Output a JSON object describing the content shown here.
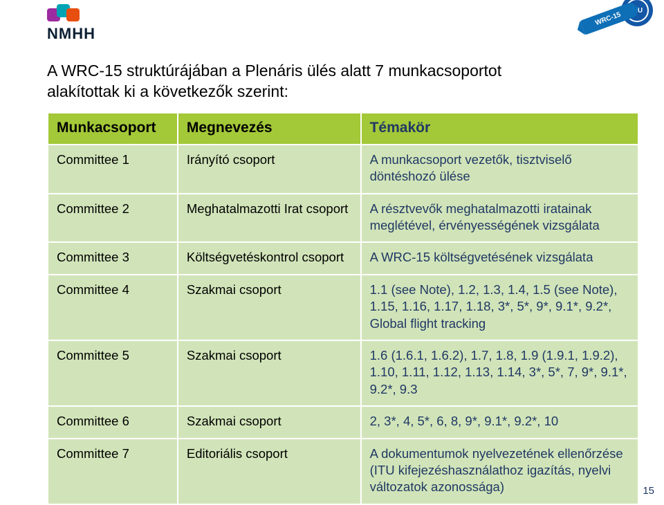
{
  "colors": {
    "header_row_bg": "#a3c838",
    "header_row_text": "#000000",
    "cell_bg": "#d1e4b9",
    "cell_text": "#000000",
    "topic_text": "#203864",
    "title_text": "#000000",
    "sq1": "#9c2aa0",
    "sq2": "#00a3b4",
    "sq3": "#e84e0f",
    "nmhh_text": "#0b1f33",
    "itu_blue": "#1357a6",
    "ribbon": "#0e6fb7"
  },
  "logo_text": "NMHH",
  "badge": {
    "itu": "ITU",
    "ribbon": "WRC-15"
  },
  "title_line1": "A WRC-15 struktúrájában a Plenáris ülés alatt 7 munkacsoportot",
  "title_line2": "alakítottak ki a következők szerint:",
  "table": {
    "headers": {
      "col1": "Munkacsoport",
      "col2": "Megnevezés",
      "col3": "Témakör"
    },
    "rows": [
      {
        "c1": "Committee 1",
        "c2": "Irányító csoport",
        "c3": "A munkacsoport vezetők, tisztviselő döntéshozó ülése"
      },
      {
        "c1": "Committee 2",
        "c2": "Meghatalmazotti Irat csoport",
        "c3": "A résztvevők meghatalmazotti iratainak meglétével, érvényességének vizsgálata"
      },
      {
        "c1": "Committee 3",
        "c2": "Költségvetéskontrol csoport",
        "c3": "A WRC-15 költségvetésének vizsgálata"
      },
      {
        "c1": "Committee 4",
        "c2": "Szakmai csoport",
        "c3": "1.1 (see Note), 1.2, 1.3, 1.4, 1.5 (see Note), 1.15, 1.16, 1.17, 1.18, 3*, 5*, 9*, 9.1*, 9.2*, Global flight tracking"
      },
      {
        "c1": "Committee 5",
        "c2": "Szakmai csoport",
        "c3": "1.6 (1.6.1, 1.6.2), 1.7, 1.8, 1.9 (1.9.1, 1.9.2), 1.10, 1.11, 1.12, 1.13, 1.14, 3*, 5*, 7, 9*, 9.1*, 9.2*, 9.3"
      },
      {
        "c1": "Committee 6",
        "c2": "Szakmai csoport",
        "c3": "2, 3*, 4, 5*, 6, 8, 9*, 9.1*, 9.2*, 10"
      },
      {
        "c1": "Committee 7",
        "c2": "Editoriális csoport",
        "c3": "A dokumentumok nyelvezetének ellenőrzése (ITU kifejezéshasználathoz igazítás, nyelvi változatok azonossága)"
      }
    ]
  },
  "page_number": "15"
}
